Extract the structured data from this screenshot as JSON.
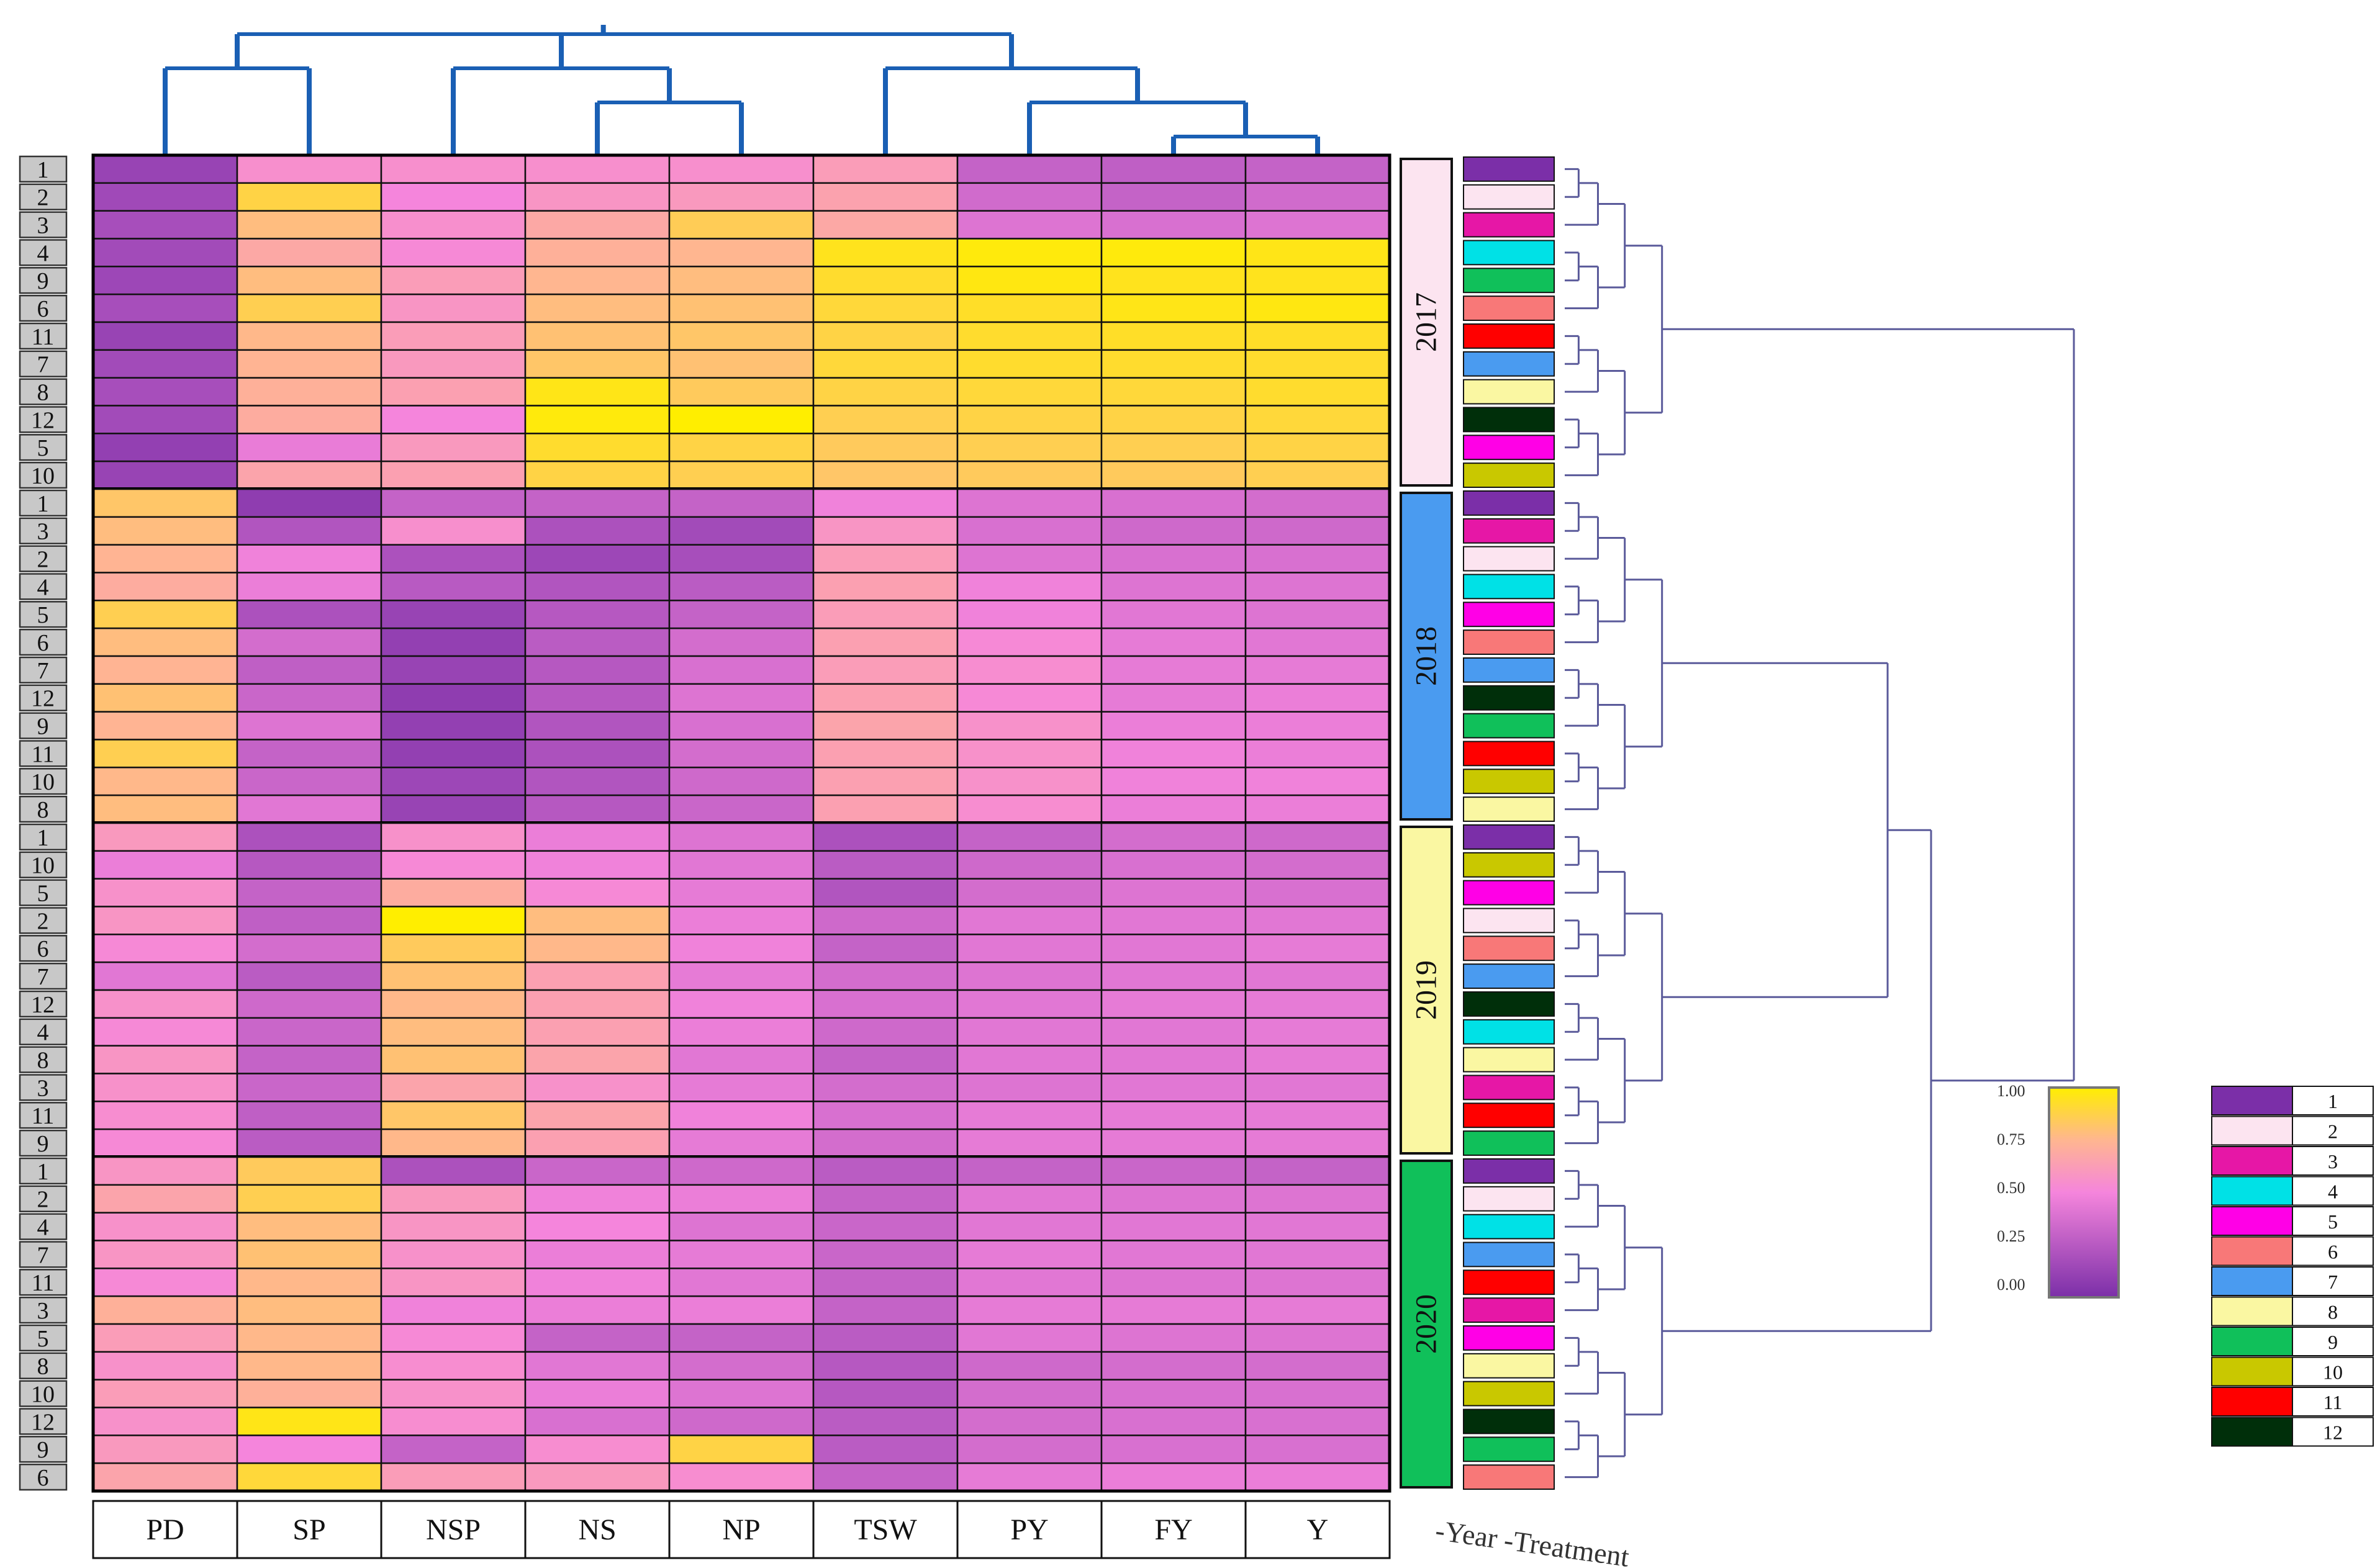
{
  "chart_data": {
    "type": "heatmap",
    "title": "",
    "columns": [
      "PD",
      "SP",
      "NSP",
      "NS",
      "NP",
      "TSW",
      "PY",
      "FY",
      "Y"
    ],
    "groups": [
      {
        "year": "2017",
        "color": "#FCE4F0",
        "rows": [
          "1",
          "2",
          "3",
          "4",
          "9",
          "6",
          "11",
          "7",
          "8",
          "12",
          "5",
          "10"
        ],
        "values": [
          [
            0.12,
            0.55,
            0.55,
            0.55,
            0.55,
            0.62,
            0.3,
            0.28,
            0.3
          ],
          [
            0.15,
            0.88,
            0.5,
            0.58,
            0.6,
            0.65,
            0.35,
            0.3,
            0.35
          ],
          [
            0.18,
            0.78,
            0.55,
            0.68,
            0.85,
            0.68,
            0.4,
            0.38,
            0.4
          ],
          [
            0.16,
            0.68,
            0.52,
            0.72,
            0.75,
            0.95,
            0.98,
            0.98,
            0.96
          ],
          [
            0.14,
            0.78,
            0.62,
            0.75,
            0.78,
            0.92,
            0.97,
            0.95,
            0.95
          ],
          [
            0.18,
            0.86,
            0.58,
            0.78,
            0.8,
            0.9,
            0.93,
            0.96,
            0.97
          ],
          [
            0.12,
            0.76,
            0.62,
            0.8,
            0.82,
            0.88,
            0.92,
            0.93,
            0.93
          ],
          [
            0.16,
            0.74,
            0.6,
            0.82,
            0.8,
            0.9,
            0.92,
            0.92,
            0.92
          ],
          [
            0.18,
            0.72,
            0.64,
            0.96,
            0.84,
            0.88,
            0.9,
            0.9,
            0.92
          ],
          [
            0.16,
            0.7,
            0.5,
            0.98,
            1.0,
            0.86,
            0.88,
            0.88,
            0.9
          ],
          [
            0.1,
            0.45,
            0.6,
            0.92,
            0.88,
            0.84,
            0.86,
            0.86,
            0.88
          ],
          [
            0.12,
            0.66,
            0.64,
            0.88,
            0.86,
            0.82,
            0.84,
            0.84,
            0.86
          ]
        ]
      },
      {
        "year": "2018",
        "color": "#4A9BF0",
        "rows": [
          "1",
          "3",
          "2",
          "4",
          "5",
          "6",
          "7",
          "12",
          "9",
          "11",
          "10",
          "8"
        ],
        "values": [
          [
            0.82,
            0.08,
            0.3,
            0.3,
            0.3,
            0.48,
            0.4,
            0.38,
            0.36
          ],
          [
            0.78,
            0.22,
            0.55,
            0.2,
            0.16,
            0.58,
            0.38,
            0.34,
            0.34
          ],
          [
            0.74,
            0.48,
            0.2,
            0.14,
            0.18,
            0.62,
            0.4,
            0.38,
            0.38
          ],
          [
            0.7,
            0.46,
            0.25,
            0.22,
            0.26,
            0.64,
            0.48,
            0.4,
            0.4
          ],
          [
            0.86,
            0.2,
            0.12,
            0.24,
            0.3,
            0.62,
            0.48,
            0.42,
            0.4
          ],
          [
            0.78,
            0.36,
            0.1,
            0.26,
            0.36,
            0.64,
            0.52,
            0.44,
            0.42
          ],
          [
            0.74,
            0.28,
            0.12,
            0.24,
            0.38,
            0.62,
            0.54,
            0.44,
            0.44
          ],
          [
            0.8,
            0.32,
            0.08,
            0.24,
            0.4,
            0.64,
            0.52,
            0.44,
            0.46
          ],
          [
            0.74,
            0.4,
            0.1,
            0.22,
            0.38,
            0.66,
            0.56,
            0.46,
            0.46
          ],
          [
            0.86,
            0.3,
            0.1,
            0.2,
            0.36,
            0.64,
            0.56,
            0.48,
            0.46
          ],
          [
            0.76,
            0.32,
            0.14,
            0.22,
            0.34,
            0.64,
            0.56,
            0.48,
            0.48
          ],
          [
            0.78,
            0.42,
            0.12,
            0.24,
            0.32,
            0.64,
            0.54,
            0.46,
            0.46
          ]
        ]
      },
      {
        "year": "2019",
        "color": "#FAF7A2",
        "rows": [
          "1",
          "10",
          "5",
          "2",
          "6",
          "7",
          "12",
          "4",
          "8",
          "3",
          "11",
          "9"
        ],
        "values": [
          [
            0.6,
            0.2,
            0.56,
            0.46,
            0.4,
            0.2,
            0.3,
            0.36,
            0.34
          ],
          [
            0.46,
            0.24,
            0.52,
            0.48,
            0.42,
            0.26,
            0.34,
            0.38,
            0.36
          ],
          [
            0.56,
            0.3,
            0.7,
            0.52,
            0.44,
            0.22,
            0.36,
            0.4,
            0.38
          ],
          [
            0.58,
            0.28,
            1.0,
            0.78,
            0.46,
            0.34,
            0.42,
            0.42,
            0.42
          ],
          [
            0.52,
            0.36,
            0.84,
            0.76,
            0.48,
            0.3,
            0.42,
            0.42,
            0.44
          ],
          [
            0.42,
            0.26,
            0.8,
            0.64,
            0.44,
            0.36,
            0.4,
            0.42,
            0.42
          ],
          [
            0.56,
            0.34,
            0.76,
            0.64,
            0.48,
            0.38,
            0.42,
            0.44,
            0.44
          ],
          [
            0.52,
            0.32,
            0.78,
            0.64,
            0.46,
            0.34,
            0.42,
            0.42,
            0.44
          ],
          [
            0.58,
            0.3,
            0.8,
            0.66,
            0.42,
            0.3,
            0.42,
            0.42,
            0.44
          ],
          [
            0.56,
            0.32,
            0.66,
            0.56,
            0.44,
            0.36,
            0.4,
            0.42,
            0.42
          ],
          [
            0.54,
            0.28,
            0.82,
            0.66,
            0.48,
            0.38,
            0.44,
            0.44,
            0.44
          ],
          [
            0.52,
            0.26,
            0.76,
            0.64,
            0.44,
            0.36,
            0.44,
            0.44,
            0.44
          ]
        ]
      },
      {
        "year": "2020",
        "color": "#10C05A",
        "rows": [
          "1",
          "2",
          "4",
          "7",
          "11",
          "3",
          "5",
          "8",
          "10",
          "12",
          "9",
          "6"
        ],
        "values": [
          [
            0.58,
            0.84,
            0.2,
            0.32,
            0.34,
            0.26,
            0.3,
            0.32,
            0.3
          ],
          [
            0.66,
            0.86,
            0.6,
            0.48,
            0.46,
            0.3,
            0.42,
            0.4,
            0.4
          ],
          [
            0.56,
            0.78,
            0.58,
            0.5,
            0.4,
            0.32,
            0.42,
            0.42,
            0.42
          ],
          [
            0.58,
            0.8,
            0.56,
            0.46,
            0.44,
            0.32,
            0.44,
            0.42,
            0.42
          ],
          [
            0.52,
            0.76,
            0.58,
            0.48,
            0.42,
            0.3,
            0.42,
            0.4,
            0.4
          ],
          [
            0.72,
            0.78,
            0.48,
            0.46,
            0.46,
            0.3,
            0.44,
            0.44,
            0.44
          ],
          [
            0.62,
            0.76,
            0.52,
            0.3,
            0.3,
            0.26,
            0.42,
            0.4,
            0.4
          ],
          [
            0.56,
            0.76,
            0.54,
            0.42,
            0.36,
            0.24,
            0.34,
            0.36,
            0.36
          ],
          [
            0.62,
            0.72,
            0.56,
            0.46,
            0.4,
            0.24,
            0.36,
            0.38,
            0.38
          ],
          [
            0.56,
            0.96,
            0.54,
            0.38,
            0.34,
            0.26,
            0.36,
            0.38,
            0.38
          ],
          [
            0.6,
            0.5,
            0.3,
            0.54,
            0.88,
            0.26,
            0.36,
            0.38,
            0.38
          ],
          [
            0.66,
            0.9,
            0.62,
            0.6,
            0.54,
            0.3,
            0.44,
            0.46,
            0.46
          ]
        ]
      }
    ],
    "colorbar": {
      "min": 0.0,
      "max": 1.0,
      "ticks": [
        "1.00",
        "0.75",
        "0.50",
        "0.25",
        "0.00"
      ],
      "colors": [
        "#7B2FA8",
        "#F585DC",
        "#FFB690",
        "#FFEE00"
      ]
    },
    "legend_treatments": [
      {
        "label": "1",
        "color": "#7B2FA8"
      },
      {
        "label": "2",
        "color": "#FCE4F0"
      },
      {
        "label": "3",
        "color": "#E617A6"
      },
      {
        "label": "4",
        "color": "#00E1E6"
      },
      {
        "label": "5",
        "color": "#FF00E6"
      },
      {
        "label": "6",
        "color": "#F87878"
      },
      {
        "label": "7",
        "color": "#4A9BF0"
      },
      {
        "label": "8",
        "color": "#FAF7A2"
      },
      {
        "label": "9",
        "color": "#10C05A"
      },
      {
        "label": "10",
        "color": "#C9C800"
      },
      {
        "label": "11",
        "color": "#FF0000"
      },
      {
        "label": "12",
        "color": "#002F0A"
      }
    ],
    "annotation_label": "-Year -Treatment",
    "column_dendrogram": {
      "leaf_order": [
        "PD",
        "SP",
        "NSP",
        "NS",
        "NP",
        "TSW",
        "PY",
        "FY",
        "Y"
      ]
    }
  }
}
